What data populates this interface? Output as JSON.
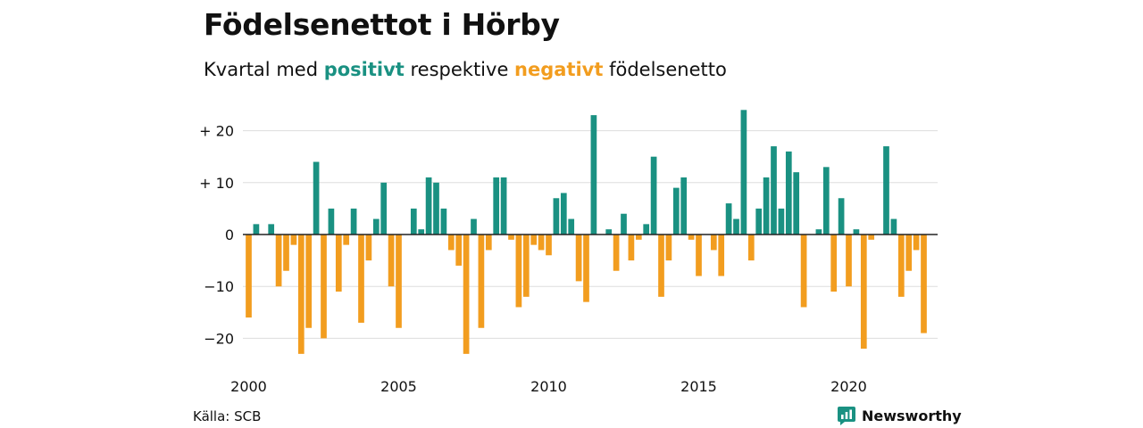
{
  "title": "Födelsenettot i Hörby",
  "subtitle": {
    "prefix": "Kvartal med ",
    "positive_word": "positivt",
    "middle": " respektive ",
    "negative_word": "negativt",
    "suffix": " födelsenetto"
  },
  "source": "Källa: SCB",
  "brand": {
    "name": "Newsworthy",
    "icon": "newsworthy-chart-bubble-icon"
  },
  "colors": {
    "positive": "#1a9182",
    "negative": "#f29d1f",
    "grid": "#dddddd",
    "zero_line": "#222222",
    "text": "#111111"
  },
  "chart_data": {
    "type": "bar",
    "title": "Födelsenettot i Hörby",
    "subtitle": "Kvartal med positivt respektive negativt födelsenetto",
    "xlabel": "",
    "ylabel": "",
    "ylim": [
      -25,
      25
    ],
    "xlim": [
      2000,
      2023.25
    ],
    "grid": true,
    "y_ticks": [
      {
        "value": 20,
        "label": "+ 20"
      },
      {
        "value": 10,
        "label": "+ 10"
      },
      {
        "value": 0,
        "label": "0"
      },
      {
        "value": -10,
        "label": "−10"
      },
      {
        "value": -20,
        "label": "−20"
      }
    ],
    "x_ticks": [
      {
        "value": 2000,
        "label": "2000"
      },
      {
        "value": 2005,
        "label": "2005"
      },
      {
        "value": 2010,
        "label": "2010"
      },
      {
        "value": 2015,
        "label": "2015"
      },
      {
        "value": 2020,
        "label": "2020"
      }
    ],
    "start_year": 2000,
    "periods_per_year": 4,
    "values": [
      -16,
      2,
      0,
      2,
      -10,
      -7,
      -2,
      -23,
      -18,
      14,
      -20,
      5,
      -11,
      -2,
      5,
      -17,
      -5,
      3,
      10,
      -10,
      -18,
      0,
      5,
      1,
      11,
      10,
      5,
      -3,
      -6,
      -23,
      3,
      -18,
      -3,
      11,
      11,
      -1,
      -14,
      -12,
      -2,
      -3,
      -4,
      7,
      8,
      3,
      -9,
      -13,
      23,
      0,
      1,
      -7,
      4,
      -5,
      -1,
      2,
      15,
      -12,
      -5,
      9,
      11,
      -1,
      -8,
      0,
      -3,
      -8,
      6,
      3,
      24,
      -5,
      5,
      11,
      17,
      5,
      16,
      12,
      -14,
      0,
      1,
      13,
      -11,
      7,
      -10,
      1,
      -22,
      -1,
      0,
      17,
      3,
      -12,
      -7,
      -3,
      -19
    ]
  }
}
